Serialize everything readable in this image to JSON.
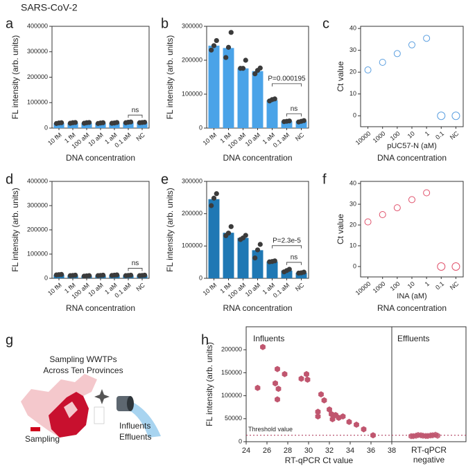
{
  "title": "SARS-CoV-2",
  "chart_data": [
    {
      "panel": "a",
      "type": "bar",
      "categories": [
        "10 fM",
        "1 fM",
        "100 aM",
        "10 aM",
        "1 aM",
        "0.1 aM",
        "NC"
      ],
      "values": [
        19000,
        20000,
        20000,
        19000,
        20000,
        22000,
        22000
      ],
      "points": [
        [
          18000,
          20000,
          21000
        ],
        [
          19000,
          21000,
          22000
        ],
        [
          19000,
          21000,
          22000
        ],
        [
          18000,
          20000,
          21000
        ],
        [
          19000,
          20000,
          22000
        ],
        [
          21000,
          23000,
          24000
        ],
        [
          21000,
          22000,
          23000
        ]
      ],
      "color": "#4aa3e8",
      "ylim": [
        0,
        400000
      ],
      "yticks": [
        0,
        100000,
        200000,
        300000,
        400000
      ],
      "ylabel": "FL intensity (arb. units)",
      "xlabel": "DNA concentration",
      "annotations": [
        "ns"
      ]
    },
    {
      "panel": "b",
      "type": "bar",
      "categories": [
        "10 fM",
        "1 fM",
        "100 aM",
        "10 aM",
        "1 aM",
        "0.1 aM",
        "NC"
      ],
      "values": [
        243000,
        236000,
        176000,
        168000,
        82000,
        20000,
        20000
      ],
      "points": [
        [
          230000,
          243000,
          258000
        ],
        [
          208000,
          238000,
          282000
        ],
        [
          176000,
          176000,
          200000
        ],
        [
          160000,
          170000,
          177000
        ],
        [
          80000,
          84000,
          86000
        ],
        [
          19000,
          20000,
          21000
        ],
        [
          18000,
          20000,
          22000
        ]
      ],
      "color": "#4aa3e8",
      "ylim": [
        0,
        300000
      ],
      "yticks": [
        0,
        100000,
        200000,
        300000
      ],
      "ylabel": "FL intensity (arb. units)",
      "xlabel": "DNA concentration",
      "annotations": [
        "P=0.000195",
        "ns"
      ]
    },
    {
      "panel": "c",
      "type": "scatter",
      "categories": [
        "10000",
        "1000",
        "100",
        "10",
        "1",
        "0.1",
        "NC"
      ],
      "values": [
        21,
        24.5,
        28.5,
        32.5,
        35.5,
        0,
        0
      ],
      "color": "#5b9fe0",
      "ylim": [
        -5,
        41
      ],
      "yticks": [
        0,
        10,
        20,
        30,
        40
      ],
      "ylabel": "Ct value",
      "xlabel": "pUC57-N (aM)",
      "caption": "DNA concentration"
    },
    {
      "panel": "d",
      "type": "bar",
      "categories": [
        "10 fM",
        "1 fM",
        "100 aM",
        "10 aM",
        "1 aM",
        "0.1 aM",
        "NC"
      ],
      "values": [
        15000,
        12000,
        10000,
        12000,
        13000,
        12000,
        12000
      ],
      "points": [
        [
          14000,
          15000,
          16000
        ],
        [
          11000,
          12000,
          13000
        ],
        [
          9000,
          10000,
          11000
        ],
        [
          11000,
          12000,
          13000
        ],
        [
          12000,
          13000,
          14000
        ],
        [
          11000,
          12000,
          13000
        ],
        [
          11000,
          12000,
          13000
        ]
      ],
      "color": "#1f78b4",
      "ylim": [
        0,
        400000
      ],
      "yticks": [
        0,
        100000,
        200000,
        300000,
        400000
      ],
      "ylabel": "FL intensity (arb. units)",
      "xlabel": "RNA concentration",
      "annotations": [
        "ns"
      ]
    },
    {
      "panel": "e",
      "type": "bar",
      "categories": [
        "10 fM",
        "1 fM",
        "100 aM",
        "10 aM",
        "1 aM",
        "0.1 aM",
        "NC"
      ],
      "values": [
        245000,
        141000,
        125000,
        87000,
        52000,
        24000,
        17000
      ],
      "points": [
        [
          225000,
          248000,
          262000
        ],
        [
          132000,
          140000,
          160000
        ],
        [
          120000,
          125000,
          133000
        ],
        [
          63000,
          88000,
          105000
        ],
        [
          51000,
          52000,
          54000
        ],
        [
          20000,
          24000,
          28000
        ],
        [
          16000,
          17000,
          19000
        ]
      ],
      "color": "#1f78b4",
      "ylim": [
        0,
        300000
      ],
      "yticks": [
        0,
        100000,
        200000,
        300000
      ],
      "ylabel": "FL intensity (arb. units)",
      "xlabel": "RNA concentration",
      "annotations": [
        "P=2.3e-5",
        "ns"
      ]
    },
    {
      "panel": "f",
      "type": "scatter",
      "categories": [
        "10000",
        "1000",
        "100",
        "10",
        "1",
        "0.1",
        "NC"
      ],
      "values": [
        21.5,
        25,
        28.3,
        32.2,
        35.5,
        0,
        0
      ],
      "color": "#e0506a",
      "ylim": [
        -5,
        41
      ],
      "yticks": [
        0,
        10,
        20,
        30,
        40
      ],
      "ylabel": "Ct value",
      "xlabel": "INA (aM)",
      "caption": "RNA concentration"
    },
    {
      "panel": "h",
      "type": "scatter_split",
      "x": [
        25.1,
        25.6,
        26.8,
        27.0,
        27.1,
        27.0,
        27.7,
        29.3,
        29.8,
        29.9,
        30.9,
        30.9,
        31.2,
        31.5,
        32.0,
        32.2,
        32.3,
        32.6,
        32.9,
        33.3,
        33.9,
        34.6,
        35.3,
        36.2
      ],
      "values": [
        117000,
        206000,
        127000,
        158000,
        115000,
        92000,
        147000,
        137000,
        147000,
        135000,
        65000,
        55000,
        103000,
        90000,
        70000,
        60000,
        49000,
        58000,
        52000,
        55000,
        43000,
        37000,
        27000,
        14000
      ],
      "negative_values": [
        12000,
        13000,
        14000,
        12500,
        13500,
        15000,
        12000,
        14500,
        13000,
        12500,
        14000,
        13000
      ],
      "color": "#c0566f",
      "xlim": [
        24,
        38
      ],
      "xticks": [
        24,
        26,
        28,
        30,
        32,
        34,
        36,
        38
      ],
      "ylim": [
        0,
        250000
      ],
      "yticks": [
        0,
        50000,
        100000,
        150000,
        200000
      ],
      "threshold": 14000,
      "threshold_label": "Threshold value",
      "annotations": [
        "Influents",
        "Effluents"
      ],
      "ylabel": "FL intensity (arb. units)",
      "xlabel": "RT-qPCR Ct value",
      "negative_label": [
        "RT-qPCR",
        "negative"
      ]
    }
  ],
  "diagram_g": {
    "panel": "g",
    "title": [
      "Sampling WWTPs",
      "Across Ten Provinces"
    ],
    "legend": "Sampling",
    "samples": [
      "Influents",
      "Effluents"
    ]
  }
}
